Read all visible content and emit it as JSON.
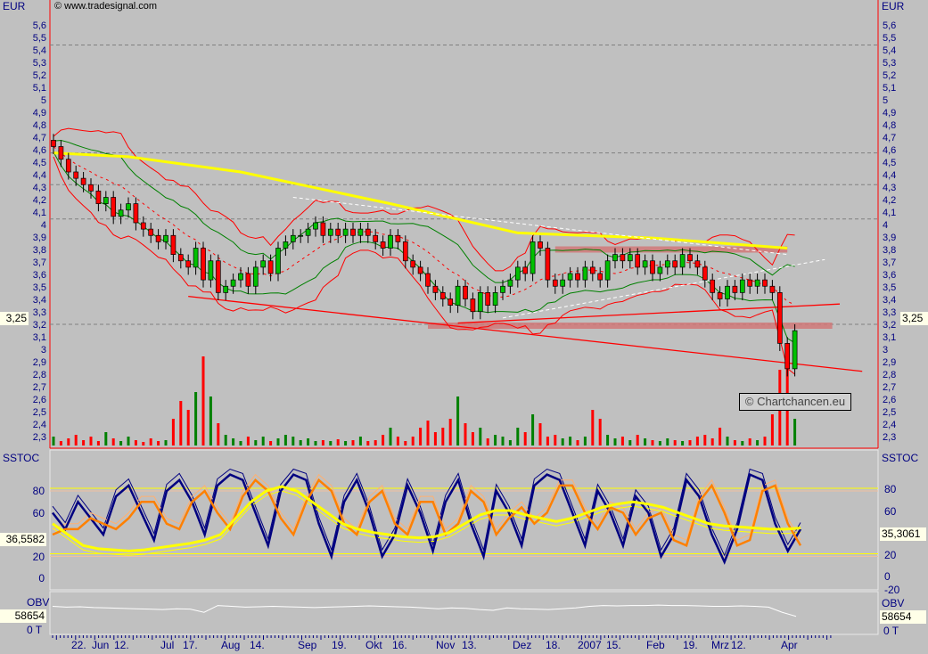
{
  "header": {
    "currency_left": "EUR",
    "currency_right": "EUR",
    "copyright": "© www.tradesignal.com",
    "watermark": "© Chartchancen.eu"
  },
  "price_axis": {
    "ticks": [
      "5,6",
      "5,5",
      "5,4",
      "5,3",
      "5,2",
      "5,1",
      "5",
      "4,9",
      "4,8",
      "4,7",
      "4,6",
      "4,5",
      "4,4",
      "4,3",
      "4,2",
      "4,1",
      "4",
      "3,9",
      "3,8",
      "3,7",
      "3,6",
      "3,5",
      "3,4",
      "3,3",
      "3,2",
      "3,1",
      "3",
      "2,9",
      "2,8",
      "2,7",
      "2,6",
      "2,5",
      "2,4",
      "2,3"
    ],
    "current_left": "3,25",
    "current_right": "3,25"
  },
  "sstoc": {
    "title_left": "SSTOC",
    "title_right": "SSTOC",
    "ticks_left": [
      "80",
      "60",
      "20",
      "0"
    ],
    "ticks_right": [
      "80",
      "60",
      "20",
      "0",
      "-20"
    ],
    "value_left": "36,5582",
    "value_right": "35,3061"
  },
  "obv": {
    "title_left": "OBV",
    "title_right": "OBV",
    "value_left": "58654",
    "value_right": "58654",
    "tick_left": "0 T",
    "tick_right": "0 T"
  },
  "time_axis": {
    "labels": [
      "22.",
      "Jun",
      "12.",
      "Jul",
      "17.",
      "Aug",
      "14.",
      "Sep",
      "19.",
      "Okt",
      "16.",
      "Nov",
      "13.",
      "Dez",
      "18.",
      "2007",
      "15.",
      "Feb",
      "19.",
      "Mrz",
      "12.",
      "Apr"
    ]
  },
  "colors": {
    "up": "#00c000",
    "down": "#ff0000",
    "ma": "#ffff00",
    "band": "#ff0000",
    "channel": "#008000",
    "stoch_k": "#000080",
    "stoch_d": "#ff8000",
    "stoch_signal": "#ffff00",
    "obv": "#ffffff",
    "zone": "#d07878"
  },
  "chart_data": {
    "type": "candlestick",
    "ylim": [
      2.25,
      5.65
    ],
    "hlines": [
      5.45,
      4.6,
      4.35,
      4.08,
      3.25
    ],
    "closes": [
      4.65,
      4.55,
      4.45,
      4.4,
      4.35,
      4.3,
      4.2,
      4.25,
      4.1,
      4.15,
      4.2,
      4.05,
      4.0,
      3.95,
      3.9,
      3.95,
      3.8,
      3.75,
      3.7,
      3.85,
      3.6,
      3.75,
      3.5,
      3.55,
      3.6,
      3.65,
      3.55,
      3.7,
      3.75,
      3.65,
      3.85,
      3.9,
      3.95,
      3.95,
      4.0,
      4.05,
      3.95,
      4.0,
      3.95,
      4.0,
      3.95,
      4.0,
      3.95,
      3.9,
      3.85,
      3.95,
      3.9,
      3.75,
      3.7,
      3.65,
      3.55,
      3.5,
      3.45,
      3.4,
      3.55,
      3.45,
      3.35,
      3.5,
      3.4,
      3.5,
      3.55,
      3.6,
      3.7,
      3.65,
      3.9,
      3.85,
      3.6,
      3.55,
      3.6,
      3.65,
      3.6,
      3.7,
      3.65,
      3.6,
      3.75,
      3.8,
      3.75,
      3.8,
      3.7,
      3.75,
      3.65,
      3.7,
      3.75,
      3.7,
      3.8,
      3.75,
      3.7,
      3.6,
      3.5,
      3.45,
      3.55,
      3.5,
      3.6,
      3.55,
      3.6,
      3.55,
      3.5,
      3.1,
      2.9,
      3.2
    ],
    "volume": [
      0.1,
      0.05,
      0.08,
      0.12,
      0.06,
      0.1,
      0.05,
      0.15,
      0.08,
      0.05,
      0.1,
      0.06,
      0.04,
      0.08,
      0.05,
      0.06,
      0.3,
      0.5,
      0.4,
      0.6,
      1.0,
      0.55,
      0.25,
      0.12,
      0.08,
      0.05,
      0.1,
      0.06,
      0.1,
      0.05,
      0.08,
      0.12,
      0.1,
      0.06,
      0.08,
      0.05,
      0.06,
      0.05,
      0.07,
      0.05,
      0.06,
      0.1,
      0.05,
      0.06,
      0.12,
      0.2,
      0.1,
      0.05,
      0.1,
      0.2,
      0.28,
      0.15,
      0.2,
      0.3,
      0.55,
      0.25,
      0.15,
      0.2,
      0.08,
      0.12,
      0.1,
      0.06,
      0.2,
      0.15,
      0.35,
      0.25,
      0.1,
      0.12,
      0.08,
      0.1,
      0.06,
      0.1,
      0.4,
      0.3,
      0.12,
      0.08,
      0.1,
      0.06,
      0.12,
      0.08,
      0.06,
      0.05,
      0.08,
      0.06,
      0.05,
      0.06,
      0.1,
      0.12,
      0.08,
      0.2,
      0.1,
      0.06,
      0.05,
      0.08,
      0.06,
      0.1,
      0.35,
      0.85,
      0.9,
      0.3
    ],
    "ma_line": [
      [
        0,
        4.6
      ],
      [
        10,
        4.57
      ],
      [
        25,
        4.45
      ],
      [
        45,
        4.2
      ],
      [
        62,
        3.97
      ],
      [
        80,
        3.93
      ],
      [
        98,
        3.85
      ]
    ],
    "trendlines": [
      {
        "from": [
          18,
          3.47
        ],
        "to": [
          108,
          2.88
        ]
      },
      {
        "from": [
          54,
          3.26
        ],
        "to": [
          105,
          3.41
        ]
      }
    ],
    "zones": [
      {
        "from": [
          67,
          3.82
        ],
        "to": [
          98,
          3.85
        ]
      },
      {
        "from": [
          50,
          3.22
        ],
        "to": [
          104,
          3.25
        ]
      }
    ],
    "stoch_k": [
      60,
      45,
      70,
      55,
      40,
      75,
      85,
      60,
      35,
      80,
      90,
      70,
      40,
      85,
      95,
      90,
      60,
      30,
      80,
      95,
      90,
      50,
      20,
      70,
      90,
      60,
      20,
      40,
      85,
      60,
      25,
      70,
      90,
      50,
      20,
      80,
      60,
      30,
      85,
      95,
      90,
      60,
      30,
      80,
      60,
      30,
      75,
      60,
      20,
      40,
      90,
      75,
      40,
      15,
      45,
      95,
      90,
      50,
      25,
      45
    ],
    "stoch_d": [
      40,
      45,
      45,
      55,
      50,
      45,
      55,
      70,
      70,
      50,
      45,
      70,
      80,
      60,
      45,
      75,
      90,
      80,
      55,
      40,
      70,
      90,
      80,
      50,
      40,
      70,
      80,
      50,
      40,
      70,
      70,
      40,
      50,
      80,
      70,
      40,
      55,
      65,
      50,
      60,
      85,
      85,
      60,
      45,
      65,
      60,
      40,
      55,
      60,
      35,
      30,
      70,
      85,
      60,
      30,
      35,
      80,
      85,
      50,
      30
    ],
    "stoch_signal": [
      50,
      40,
      30,
      27,
      26,
      25,
      26,
      28,
      30,
      32,
      35,
      40,
      55,
      70,
      80,
      84,
      80,
      70,
      60,
      50,
      45,
      42,
      40,
      38,
      37,
      38,
      42,
      50,
      58,
      62,
      62,
      58,
      55,
      52,
      55,
      60,
      65,
      68,
      70,
      68,
      65,
      60,
      55,
      50,
      48,
      47,
      46,
      45,
      45,
      46
    ],
    "stoch_levels": [
      80,
      20
    ],
    "stoch_ylim": [
      -20,
      100
    ],
    "obv_series": [
      70,
      68,
      69,
      67,
      66,
      65,
      64,
      63,
      62,
      64,
      63,
      55,
      72,
      70,
      68,
      69,
      70,
      69,
      68,
      67,
      68,
      69,
      70,
      71,
      70,
      69,
      68,
      66,
      64,
      66,
      65,
      62,
      60,
      66,
      64,
      63,
      62,
      64,
      66,
      70,
      72,
      71,
      72,
      72,
      73,
      72,
      72,
      71,
      70,
      70,
      71,
      70,
      68,
      55,
      45
    ]
  }
}
